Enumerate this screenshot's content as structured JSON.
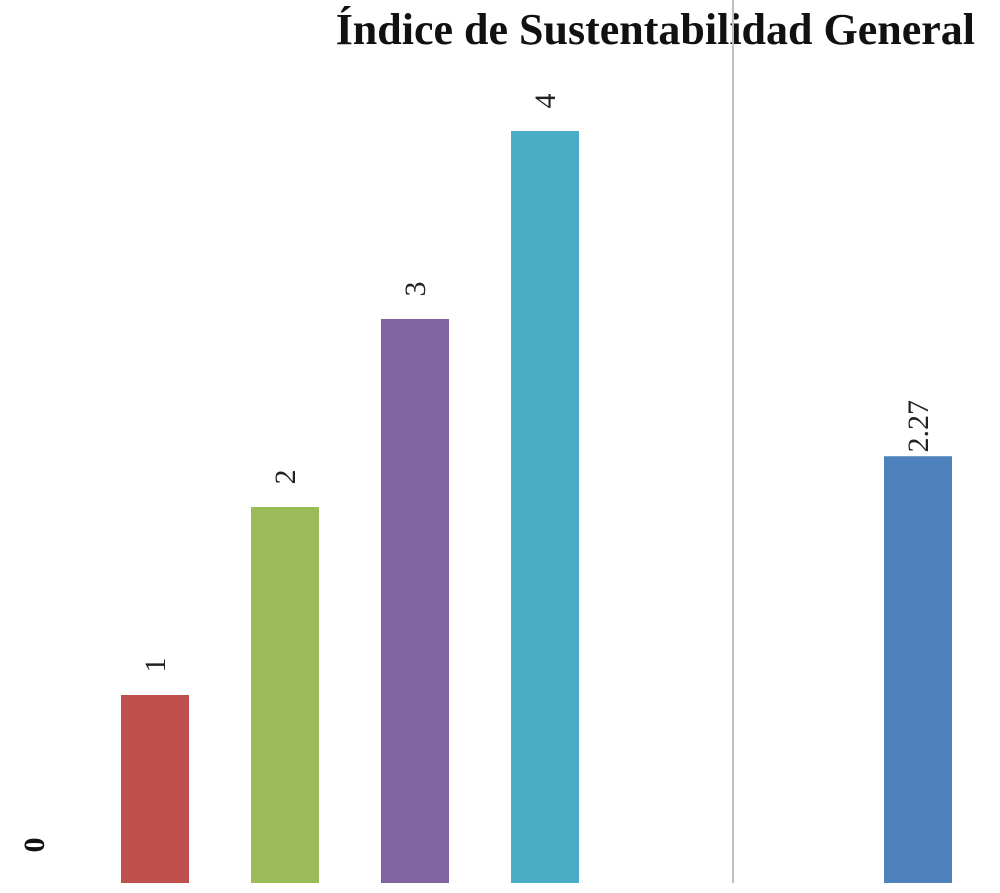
{
  "chart_data": {
    "type": "bar",
    "title": "Índice de Sustentabilidad General",
    "xlabel": "",
    "ylabel": "",
    "ylim": [
      0,
      4
    ],
    "grid": false,
    "legend": "none",
    "baseline_label": "0",
    "groups": [
      {
        "bars": [
          {
            "value": 1,
            "label": "1",
            "color": "#C0504D"
          },
          {
            "value": 2,
            "label": "2",
            "color": "#9BBB59"
          },
          {
            "value": 3,
            "label": "3",
            "color": "#8064A2"
          },
          {
            "value": 4,
            "label": "4",
            "color": "#4BACC6"
          }
        ]
      },
      {
        "bars": [
          {
            "value": 2.27,
            "label": "2.27",
            "color": "#4F81BD"
          }
        ]
      }
    ],
    "separator_color": "#BFBFBF"
  }
}
